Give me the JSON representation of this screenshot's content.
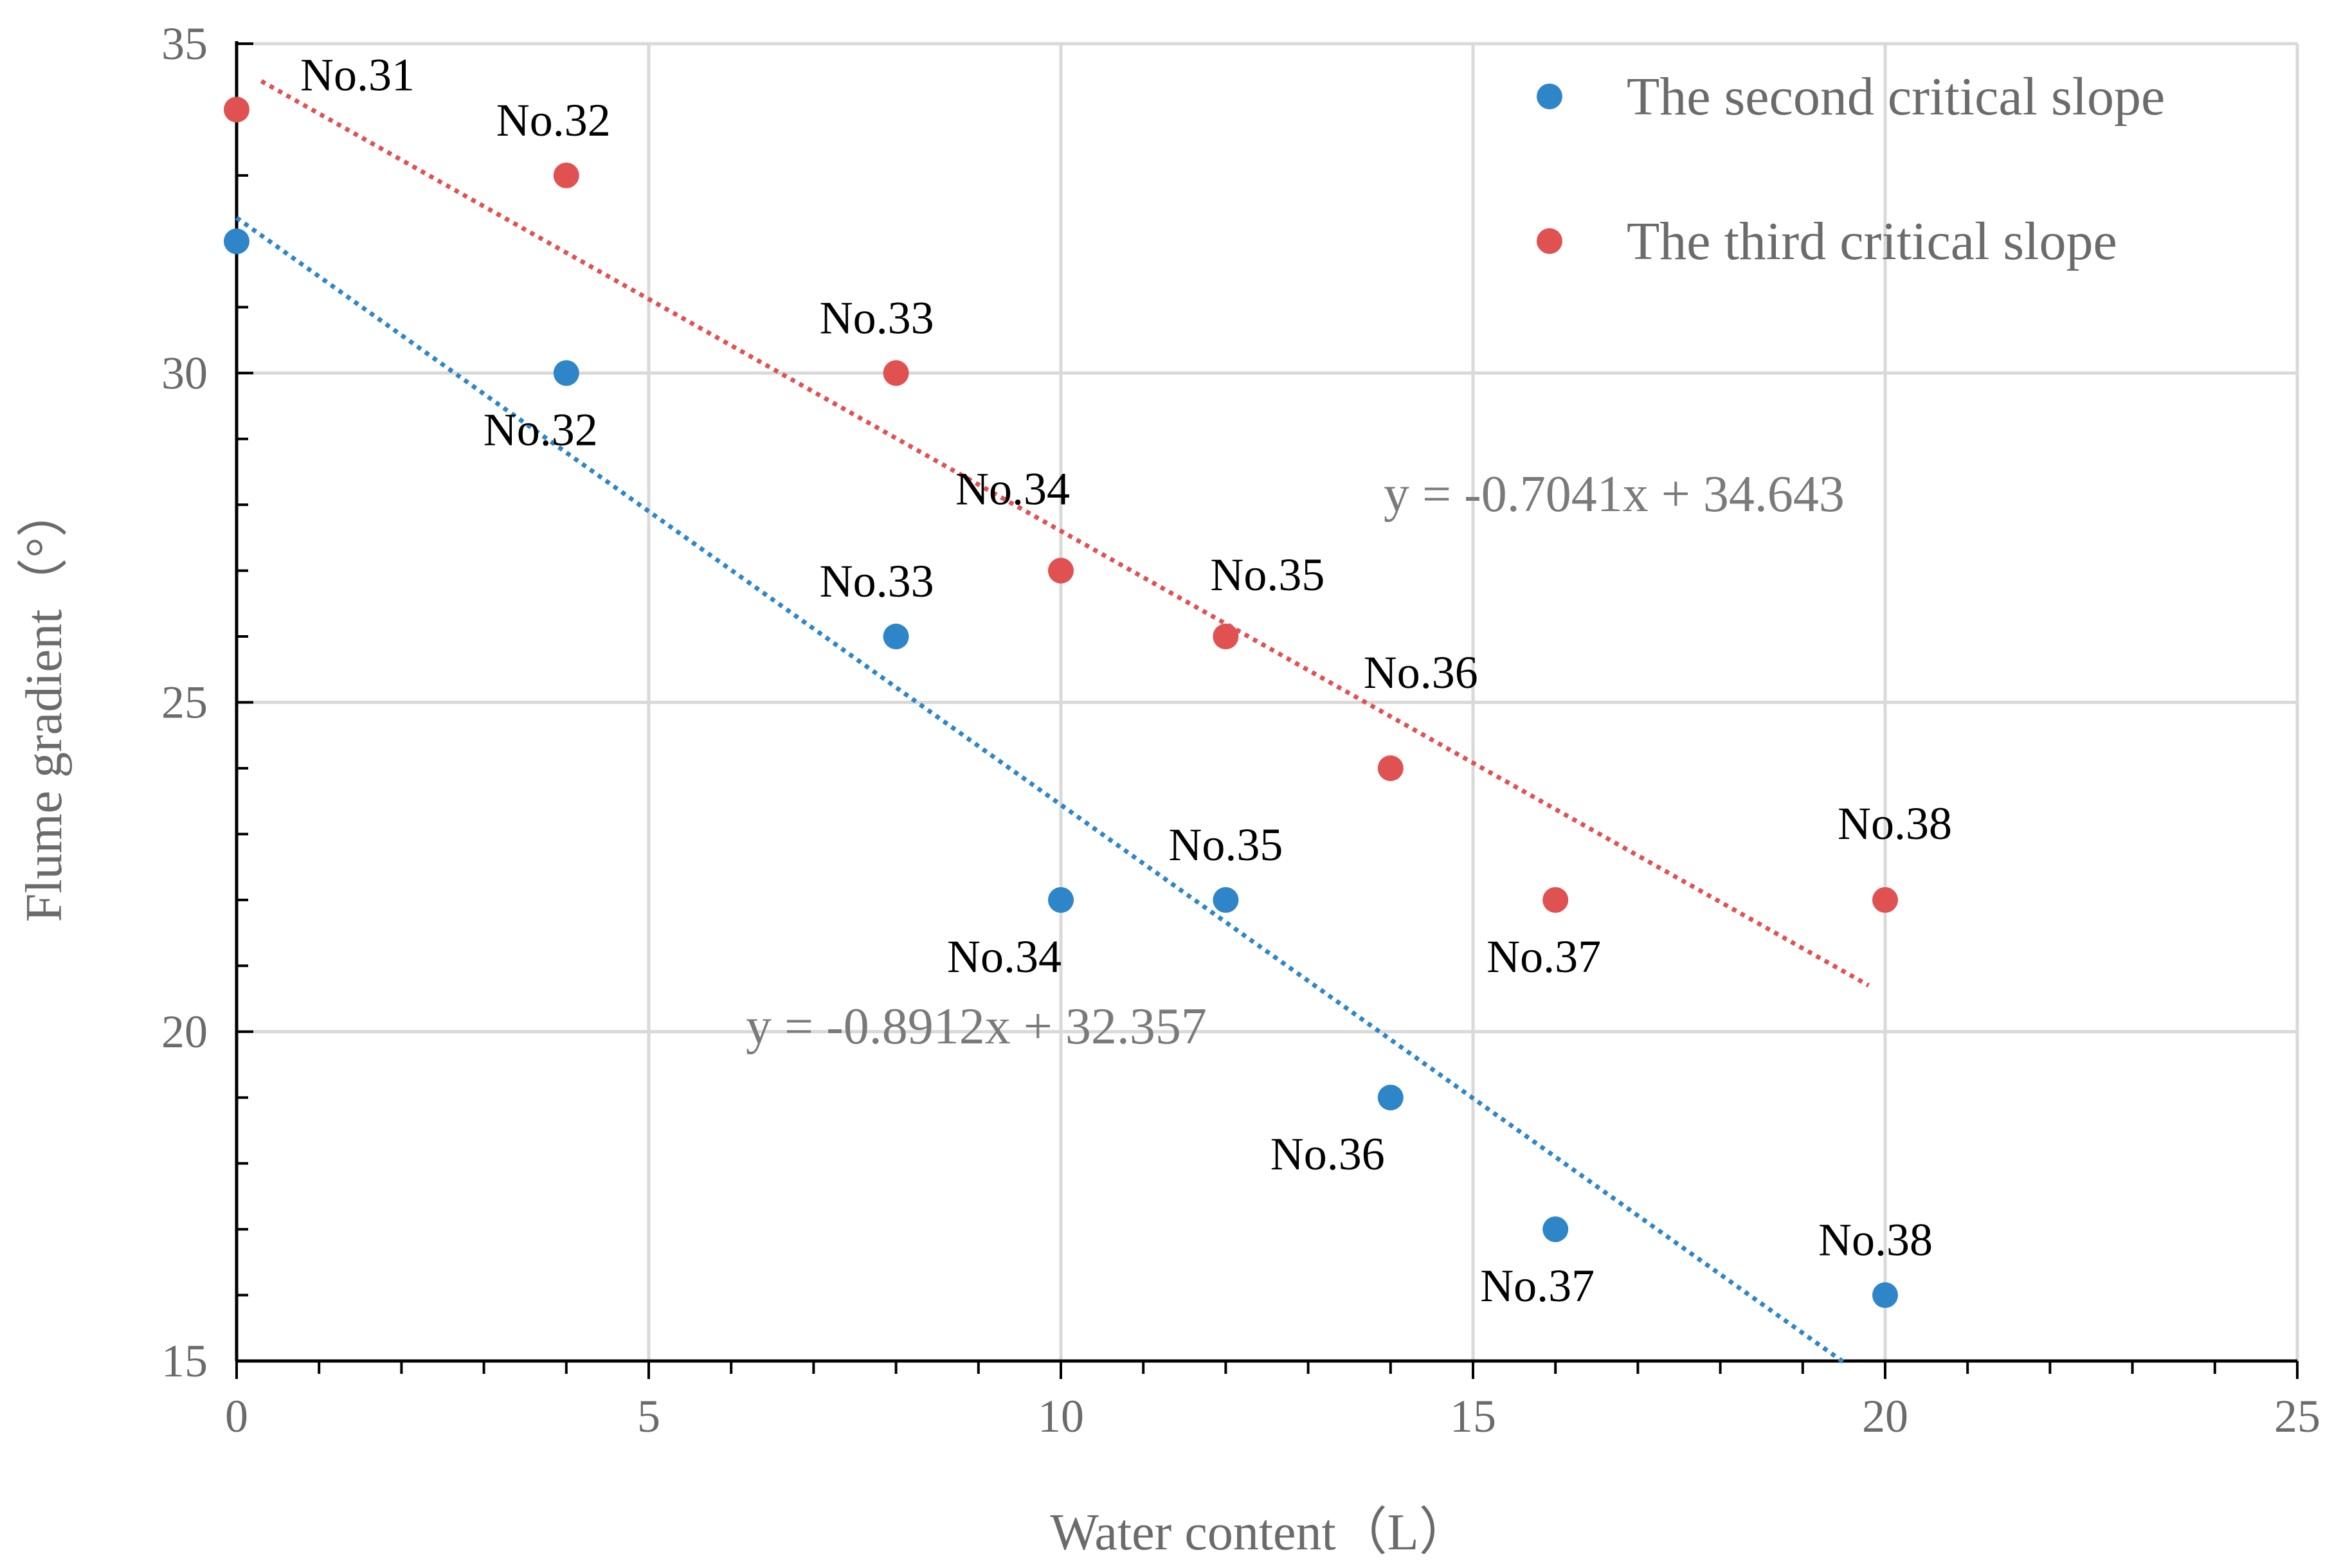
{
  "chart_data": {
    "type": "scatter",
    "xlabel": "Water content（L）",
    "ylabel": "Flume  gradient（°）",
    "xlim": [
      0,
      25
    ],
    "ylim": [
      15,
      35
    ],
    "xticks": [
      "0",
      "5",
      "10",
      "15",
      "20",
      "25"
    ],
    "yticks": [
      "15",
      "20",
      "25",
      "30",
      "35"
    ],
    "grid": true,
    "legend_position": "top-right",
    "series": [
      {
        "name": "The second critical slope",
        "color": "#2e86c8",
        "points": [
          {
            "x": 0,
            "y": 32,
            "label": ""
          },
          {
            "x": 4,
            "y": 30,
            "label": "No.32"
          },
          {
            "x": 8,
            "y": 26,
            "label": "No.33"
          },
          {
            "x": 10,
            "y": 22,
            "label": "No.34"
          },
          {
            "x": 12,
            "y": 22,
            "label": "No.35"
          },
          {
            "x": 14,
            "y": 19,
            "label": "No.36"
          },
          {
            "x": 16,
            "y": 17,
            "label": "No.37"
          },
          {
            "x": 20,
            "y": 16,
            "label": "No.38"
          }
        ],
        "trendline": {
          "slope": -0.8912,
          "intercept": 32.357,
          "x_start": 0,
          "x_end": 19.5,
          "equation": "y = -0.8912x + 32.357"
        }
      },
      {
        "name": "The third critical slope",
        "color": "#e05252",
        "points": [
          {
            "x": 0,
            "y": 34,
            "label": "No.31"
          },
          {
            "x": 4,
            "y": 33,
            "label": "No.32"
          },
          {
            "x": 8,
            "y": 30,
            "label": "No.33"
          },
          {
            "x": 10,
            "y": 27,
            "label": "No.34"
          },
          {
            "x": 12,
            "y": 26,
            "label": "No.35"
          },
          {
            "x": 14,
            "y": 24,
            "label": "No.36"
          },
          {
            "x": 16,
            "y": 22,
            "label": "No.37"
          },
          {
            "x": 20,
            "y": 22,
            "label": "No.38"
          }
        ],
        "trendline": {
          "slope": -0.7041,
          "intercept": 34.643,
          "x_start": 0.3,
          "x_end": 19.8,
          "equation": "y = -0.7041x + 34.643"
        }
      }
    ]
  }
}
